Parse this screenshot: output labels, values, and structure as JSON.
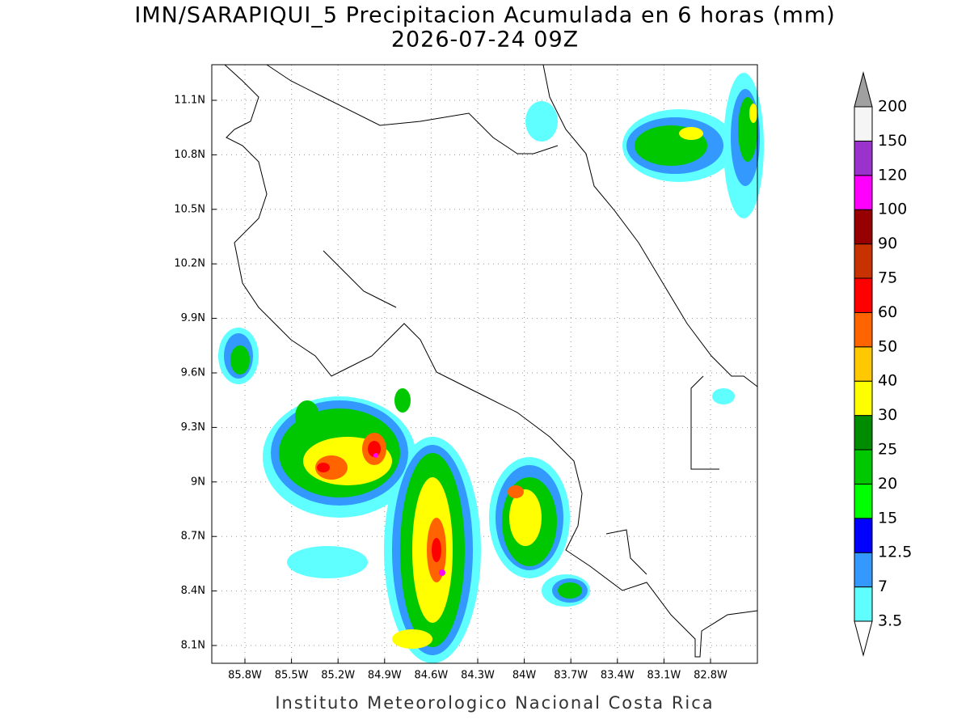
{
  "title": "IMN/SARAPIQUI_5 Precipitacion Acumulada en 6 horas (mm)",
  "subtitle": "2026-07-24 09Z",
  "latitude_labels": [
    "11.1N",
    "10.8N",
    "10.5N",
    "10.2N",
    "9.9N",
    "9.6N",
    "9.3N",
    "9N",
    "8.7N",
    "8.4N",
    "8.1N"
  ],
  "longitude_labels": [
    "85.8W",
    "85.5W",
    "85.2W",
    "84.9W",
    "84.6W",
    "84.3W",
    "84W",
    "83.7W",
    "83.4W",
    "83.1W",
    "82.8W"
  ],
  "colorbar": {
    "levels": [
      3.5,
      7,
      12.5,
      15,
      20,
      25,
      30,
      40,
      50,
      60,
      75,
      90,
      100,
      120,
      150,
      200
    ],
    "colors": [
      "#5fffff",
      "#3399ff",
      "#0000ff",
      "#00ff00",
      "#00c800",
      "#008c00",
      "#ffff00",
      "#ffc800",
      "#ff6400",
      "#ff0000",
      "#c83200",
      "#960000",
      "#ff00ff",
      "#9933cc",
      "#f5f5f5"
    ],
    "over_color": "#a0a0a0",
    "under_color": "#ffffff"
  },
  "footer": "Instituto Meteorologico Nacional Costa Rica"
}
